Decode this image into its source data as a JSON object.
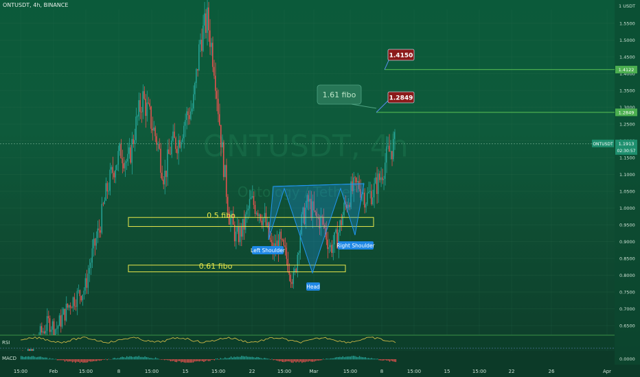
{
  "header": {
    "symbol_title": "ONTUSDT, 4h, BINANCE"
  },
  "watermark": {
    "line1": "ONTUSDT, 4h",
    "line2": "Ontology / Tether"
  },
  "axis": {
    "currency": "1 USDT",
    "price_ticks": [
      "1.5500",
      "1.5000",
      "1.4500",
      "1.4000",
      "1.3500",
      "1.3000",
      "1.2500",
      "1.2000",
      "1.1500",
      "1.1000",
      "1.0500",
      "1.0000",
      "0.9500",
      "0.9000",
      "0.8500",
      "0.8000",
      "0.7500",
      "0.7000",
      "0.6500"
    ],
    "indicator_tick": "0.0000",
    "time_ticks": [
      "15:00",
      "Feb",
      "15:00",
      "8",
      "15:00",
      "15",
      "15:00",
      "22",
      "15:00",
      "Mar",
      "15:00",
      "8",
      "15:00",
      "15",
      "15:00",
      "22",
      "26",
      "Apr"
    ]
  },
  "price_tags": {
    "level_a": "1.4122",
    "level_b": "1.2849",
    "current_symbol": "ONTUSDT",
    "current_price": "1.1913",
    "countdown": "02:30:57"
  },
  "annotations": {
    "target_1": "1.4150",
    "target_2": "1.2849",
    "fibo_callout": "1.61 fibo",
    "fibo_05": "0.5 fibo",
    "fibo_061": "0.61 fibo",
    "left_shoulder": "Left Shoulder",
    "head": "Head",
    "right_shoulder": "Right Shoulder"
  },
  "indicators": {
    "rsi_label": "RSI",
    "macd_label": "MACD"
  },
  "colors": {
    "bull": "#26a69a",
    "bear": "#ef5350",
    "fibo": "#e9e94b",
    "level_line": "#4caf50",
    "pattern": "#2196f3",
    "target_box": "#8b1a1a",
    "current_tag": "#1e8f6e"
  },
  "chart_data": {
    "type": "candlestick",
    "timeframe": "4h",
    "ylim": [
      0.62,
      1.6
    ],
    "x_range": [
      "late January",
      "early April"
    ],
    "ohlc_path": [
      0.46,
      0.55,
      0.56,
      0.6,
      0.63,
      0.66,
      0.64,
      0.68,
      0.72,
      0.74,
      0.76,
      0.86,
      0.94,
      1.05,
      1.12,
      1.17,
      1.13,
      1.24,
      1.33,
      1.27,
      1.2,
      1.09,
      1.19,
      1.2,
      1.27,
      1.3,
      1.5,
      1.56,
      1.42,
      1.18,
      0.98,
      0.91,
      0.94,
      1.02,
      1.0,
      0.96,
      0.87,
      0.9,
      0.85,
      0.78,
      0.95,
      1.02,
      0.97,
      0.96,
      0.88,
      0.91,
      1.0,
      1.05,
      1.07,
      1.03,
      1.05,
      1.09,
      1.16,
      1.19
    ],
    "horizontal_levels": [
      1.4122,
      1.2849
    ],
    "fibo_zones": [
      {
        "label": "0.5 fibo",
        "low": 0.945,
        "high": 0.972
      },
      {
        "label": "0.61 fibo",
        "low": 0.81,
        "high": 0.83
      }
    ],
    "pattern": {
      "name": "inverse head and shoulders",
      "points": [
        {
          "label": "Left Shoulder",
          "price": 0.89
        },
        {
          "label": "Head",
          "price": 0.78
        },
        {
          "label": "Right Shoulder",
          "price": 0.89
        }
      ],
      "neckline": [
        1.05,
        1.06
      ]
    },
    "targets": [
      1.415,
      1.2849
    ]
  }
}
